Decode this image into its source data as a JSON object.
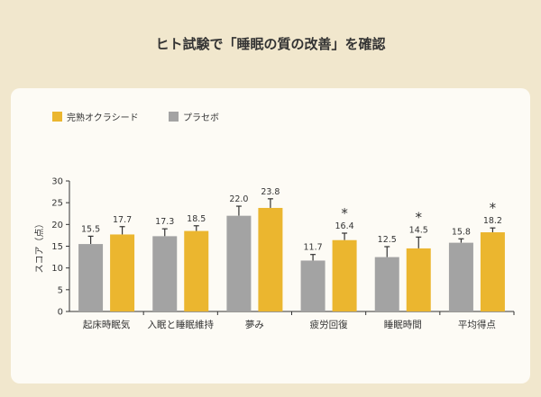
{
  "title": "ヒト試験で「睡眠の質の改善」を確認",
  "chart_data": {
    "type": "bar",
    "title": "ヒト試験で「睡眠の質の改善」を確認",
    "ylabel": "スコア（点）",
    "xlabel": "",
    "ylim": [
      0,
      30
    ],
    "yticks": [
      0,
      5,
      10,
      15,
      20,
      25,
      30
    ],
    "grid": false,
    "legend_position": "top-left",
    "categories": [
      "起床時眠気",
      "入眠と睡眠維持",
      "夢み",
      "疲労回復",
      "睡眠時間",
      "平均得点"
    ],
    "series": [
      {
        "name": "プラセボ",
        "color": "#a3a3a3",
        "values": [
          15.5,
          17.3,
          22.0,
          11.7,
          12.5,
          15.8
        ],
        "errors": [
          1.8,
          1.7,
          2.2,
          1.4,
          2.4,
          0.9
        ]
      },
      {
        "name": "完熟オクラシード",
        "color": "#ebb62f",
        "values": [
          17.7,
          18.5,
          23.8,
          16.4,
          14.5,
          18.2
        ],
        "errors": [
          1.8,
          1.2,
          2.1,
          1.6,
          2.6,
          1.0
        ]
      }
    ],
    "significance": [
      false,
      false,
      false,
      true,
      true,
      true
    ],
    "significance_mark": "＊"
  }
}
